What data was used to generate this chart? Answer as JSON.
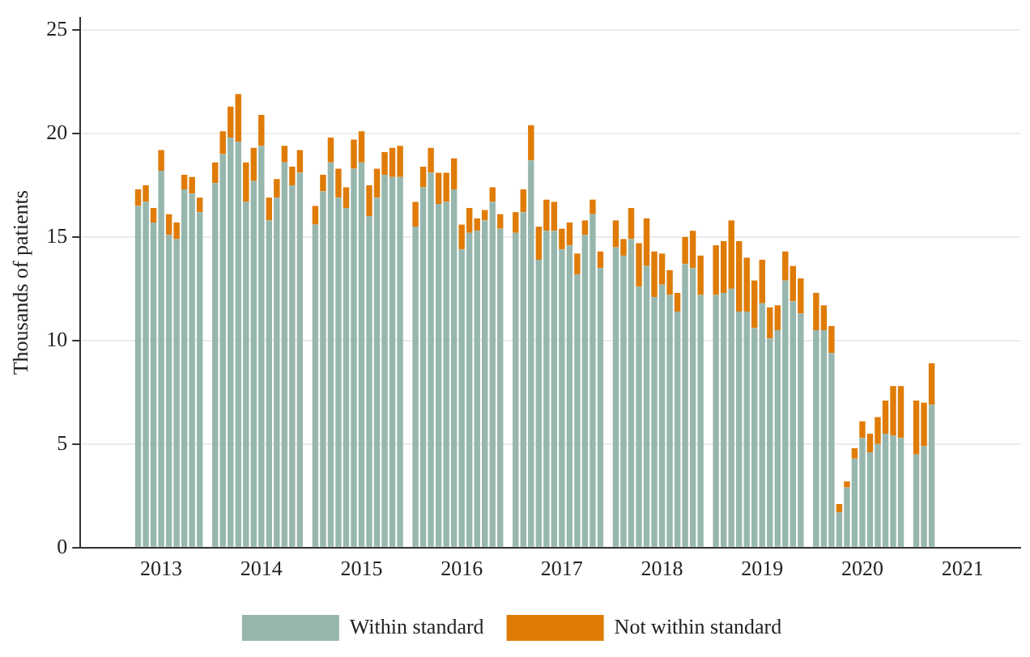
{
  "chart_data": {
    "type": "bar",
    "stacked": true,
    "ylabel": "Thousands of patients",
    "categories": [
      null,
      null,
      null,
      null,
      null,
      null,
      null,
      null,
      null,
      null,
      "2013",
      null,
      null,
      null,
      null,
      null,
      null,
      null,
      null,
      null,
      null,
      null,
      null,
      "2014",
      null,
      null,
      null,
      null,
      null,
      null,
      null,
      null,
      null,
      null,
      null,
      null,
      "2015",
      null,
      null,
      null,
      null,
      null,
      null,
      null,
      null,
      null,
      null,
      null,
      null,
      "2016",
      null,
      null,
      null,
      null,
      null,
      null,
      null,
      null,
      null,
      null,
      null,
      null,
      "2017",
      null,
      null,
      null,
      null,
      null,
      null,
      null,
      null,
      null,
      null,
      null,
      null,
      "2018",
      null,
      null,
      null,
      null,
      null,
      null,
      null,
      null,
      null,
      null,
      null,
      null,
      "2019",
      null,
      null,
      null,
      null,
      null,
      null,
      null,
      null,
      null,
      null,
      null,
      null,
      "2020",
      null,
      null,
      null,
      null,
      null,
      null,
      null,
      null,
      null,
      null,
      null,
      null,
      "2021",
      null,
      null,
      null,
      null,
      null,
      null,
      null
    ],
    "series": [
      {
        "name": "Within standard",
        "color": "#97b7ae",
        "values": [
          null,
          null,
          null,
          null,
          null,
          null,
          null,
          16.5,
          16.7,
          15.7,
          18.2,
          15.1,
          14.9,
          17.3,
          17.1,
          16.2,
          null,
          17.6,
          19.0,
          19.8,
          19.6,
          16.7,
          17.7,
          19.4,
          15.8,
          16.9,
          18.6,
          17.5,
          18.1,
          null,
          15.6,
          17.2,
          18.6,
          16.9,
          16.4,
          18.3,
          18.6,
          16.0,
          16.9,
          18.0,
          17.9,
          17.9,
          null,
          15.5,
          17.4,
          18.1,
          16.6,
          16.7,
          17.3,
          14.4,
          15.2,
          15.3,
          15.8,
          16.7,
          15.4,
          null,
          15.2,
          16.2,
          18.7,
          13.9,
          15.3,
          15.3,
          14.4,
          14.6,
          13.2,
          15.1,
          16.1,
          13.5,
          null,
          14.5,
          14.1,
          14.9,
          12.6,
          13.6,
          12.1,
          12.7,
          12.2,
          11.4,
          13.7,
          13.5,
          12.2,
          null,
          12.2,
          12.3,
          12.5,
          11.4,
          11.4,
          10.6,
          11.8,
          10.1,
          10.5,
          12.9,
          11.9,
          11.3,
          null,
          10.5,
          10.5,
          9.4,
          1.7,
          2.9,
          4.3,
          5.3,
          4.6,
          5.0,
          5.5,
          5.4,
          5.3,
          null,
          4.5,
          4.9,
          6.9,
          null,
          null,
          null,
          null,
          null,
          null,
          null,
          null,
          null,
          null,
          null
        ]
      },
      {
        "name": "Not within standard",
        "color": "#e07b05",
        "values": [
          null,
          null,
          null,
          null,
          null,
          null,
          null,
          0.8,
          0.8,
          0.7,
          1.0,
          1.0,
          0.8,
          0.7,
          0.8,
          0.7,
          null,
          1.0,
          1.1,
          1.5,
          2.3,
          1.9,
          1.6,
          1.5,
          1.1,
          0.9,
          0.8,
          0.9,
          1.1,
          null,
          0.9,
          0.8,
          1.2,
          1.4,
          1.0,
          1.4,
          1.5,
          1.5,
          1.4,
          1.1,
          1.4,
          1.5,
          null,
          1.2,
          1.0,
          1.2,
          1.5,
          1.4,
          1.5,
          1.2,
          1.2,
          0.6,
          0.5,
          0.7,
          0.7,
          null,
          1.0,
          1.1,
          1.7,
          1.6,
          1.5,
          1.4,
          1.0,
          1.1,
          1.0,
          0.7,
          0.7,
          0.8,
          null,
          1.3,
          0.8,
          1.5,
          2.1,
          2.3,
          2.2,
          1.5,
          1.2,
          0.9,
          1.3,
          1.8,
          1.9,
          null,
          2.4,
          2.5,
          3.3,
          3.4,
          2.6,
          2.3,
          2.1,
          1.5,
          1.2,
          1.4,
          1.7,
          1.7,
          null,
          1.8,
          1.2,
          1.3,
          0.4,
          0.3,
          0.5,
          0.8,
          0.9,
          1.3,
          1.6,
          2.4,
          2.5,
          null,
          2.6,
          2.1,
          2.0,
          null,
          null,
          null,
          null,
          null,
          null,
          null,
          null,
          null,
          null,
          null
        ]
      }
    ],
    "ylim": [
      0,
      25.6
    ],
    "yticks": [
      0,
      5,
      10,
      15,
      20,
      25
    ],
    "grid": "y",
    "legend": "bottom"
  }
}
